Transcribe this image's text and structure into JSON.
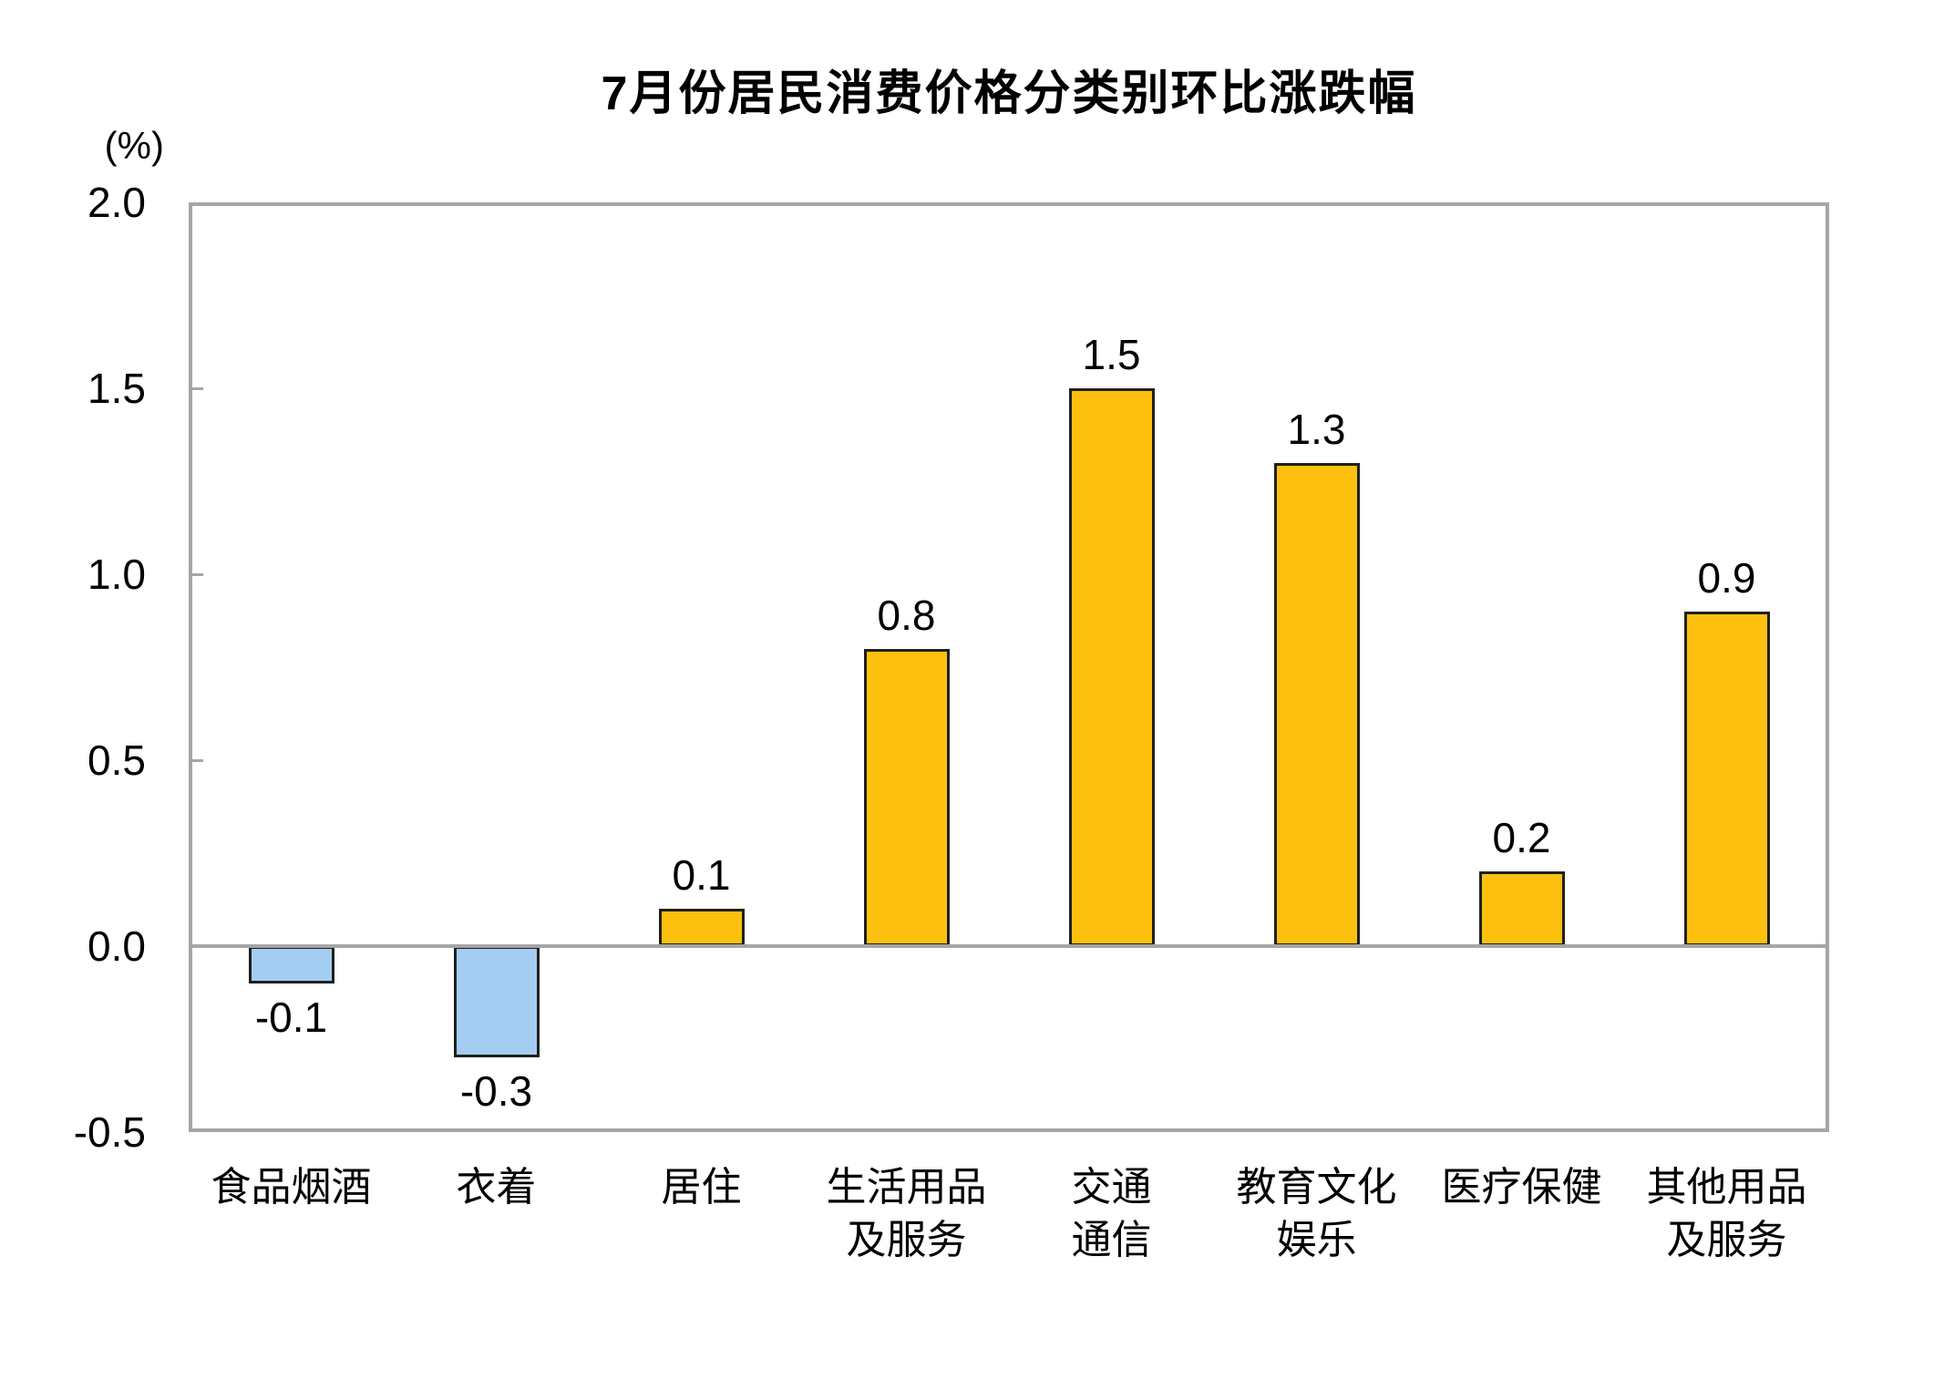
{
  "chart_data": {
    "type": "bar",
    "title": "7月份居民消费价格分类别环比涨跌幅",
    "ylabel": "(%)",
    "xlabel": "",
    "categories": [
      "食品烟酒",
      "衣着",
      "居住",
      "生活用品及服务",
      "交通通信",
      "教育文化娱乐",
      "医疗保健",
      "其他用品及服务"
    ],
    "category_lines": [
      [
        "食品烟酒"
      ],
      [
        "衣着"
      ],
      [
        "居住"
      ],
      [
        "生活用品",
        "及服务"
      ],
      [
        "交通",
        "通信"
      ],
      [
        "教育文化",
        "娱乐"
      ],
      [
        "医疗保健"
      ],
      [
        "其他用品",
        "及服务"
      ]
    ],
    "values": [
      -0.1,
      -0.3,
      0.1,
      0.8,
      1.5,
      1.3,
      0.2,
      0.9
    ],
    "value_labels": [
      "-0.1",
      "-0.3",
      "0.1",
      "0.8",
      "1.5",
      "1.3",
      "0.2",
      "0.9"
    ],
    "ylim": [
      -0.5,
      2.0
    ],
    "yticks": [
      2.0,
      1.5,
      1.0,
      0.5,
      0.0,
      -0.5
    ],
    "ytick_labels": [
      "2.0",
      "1.5",
      "1.0",
      "0.5",
      "0.0",
      "-0.5"
    ],
    "grid": false,
    "legend": false,
    "colors": {
      "positive_bar": "#FDC00E",
      "negative_bar": "#A5CDF1",
      "bar_border": "#1F1F1F",
      "axis_frame": "#A6A6A6",
      "text": "#000000"
    }
  }
}
